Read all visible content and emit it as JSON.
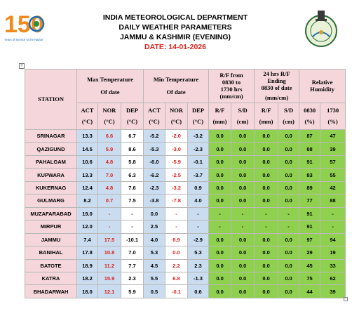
{
  "logo": {
    "number": "150",
    "tagline": "Years of Service to the Nation"
  },
  "header": {
    "line1": "INDIA METEOROLOGICAL DEPARTMENT",
    "line2": "DAILY WEATHER PARAMETERS",
    "line3": "JAMMU & KASHMIR (EVENING)",
    "date": "DATE: 14-01-2026"
  },
  "table": {
    "station_header": "STATION",
    "group_max": [
      "Max Temperature",
      "Of date"
    ],
    "group_min": [
      "Min Temperature",
      "Of date"
    ],
    "group_rf": [
      "R/F from",
      "0830 to",
      "1730 hrs",
      "(mm/cm)"
    ],
    "group_24": [
      "24 hrs R/F",
      "Ending",
      "0830 of date",
      "(mm/cm)"
    ],
    "group_rh": [
      "Relative",
      "Humidity"
    ],
    "sub": {
      "act": "ACT",
      "nor": "NOR",
      "dep": "DEP",
      "unit_c": "(°C)",
      "rf": "R/F",
      "sd": "S/D",
      "mm": "(mm)",
      "cm": "(cm)",
      "t0830": "0830",
      "t1730": "1730",
      "pct": "(%)"
    },
    "rows": [
      [
        "SRINAGAR",
        "13.3",
        "6.6",
        "6.7",
        "-5.2",
        "-2.0",
        "-3.2",
        "0.0",
        "0.0",
        "0.0",
        "0.0",
        "87",
        "47"
      ],
      [
        "QAZIGUND",
        "14.5",
        "5.9",
        "8.6",
        "-5.3",
        "-3.0",
        "-2.3",
        "0.0",
        "0.0",
        "0.0",
        "0.0",
        "88",
        "39"
      ],
      [
        "PAHALGAM",
        "10.6",
        "4.8",
        "5.8",
        "-6.0",
        "-5.9",
        "-0.1",
        "0.0",
        "0.0",
        "0.0",
        "0.0",
        "91",
        "57"
      ],
      [
        "KUPWARA",
        "13.3",
        "7.0",
        "6.3",
        "-6.2",
        "-2.5",
        "-3.7",
        "0.0",
        "0.0",
        "0.0",
        "0.0",
        "83",
        "55"
      ],
      [
        "KUKERNAG",
        "12.4",
        "4.8",
        "7.6",
        "-2.3",
        "-3.2",
        "0.9",
        "0.0",
        "0.0",
        "0.0",
        "0.0",
        "89",
        "42"
      ],
      [
        "GULMARG",
        "8.2",
        "0.7",
        "7.5",
        "-3.8",
        "-7.8",
        "4.0",
        "0.0",
        "0.0",
        "0.0",
        "0.0",
        "77",
        "88"
      ],
      [
        "MUZAFARABAD",
        "19.0",
        "-",
        "-",
        "0.0",
        "-",
        "-",
        "-",
        "-",
        "-",
        "-",
        "91",
        "-"
      ],
      [
        "MIRPUR",
        "12.0",
        "-",
        "-",
        "2.5",
        "-",
        "-",
        "-",
        "-",
        "-",
        "-",
        "91",
        "-"
      ],
      [
        "JAMMU",
        "7.4",
        "17.5",
        "-10.1",
        "4.0",
        "6.9",
        "-2.9",
        "0.0",
        "0.0",
        "0.0",
        "0.0",
        "97",
        "94"
      ],
      [
        "BANIHAL",
        "17.8",
        "10.8",
        "7.0",
        "5.3",
        "0.0",
        "5.3",
        "0.0",
        "0.0",
        "0.0",
        "0.0",
        "29",
        "19"
      ],
      [
        "BATOTE",
        "18.9",
        "11.2",
        "7.7",
        "4.5",
        "2.2",
        "2.3",
        "0.0",
        "0.0",
        "0.0",
        "0.0",
        "45",
        "33"
      ],
      [
        "KATRA",
        "18.2",
        "15.9",
        "2.3",
        "5.5",
        "6.8",
        "-1.3",
        "0.0",
        "0.0",
        "0.0",
        "0.0",
        "75",
        "62"
      ],
      [
        "BHADARWAH",
        "18.0",
        "12.1",
        "5.9",
        "0.5",
        "-0.1",
        "0.6",
        "0.0",
        "0.0",
        "0.0",
        "0.0",
        "44",
        "39"
      ]
    ]
  },
  "colors": {
    "pink": "#f4d6db",
    "blue": "#c9dcf0",
    "green": "#8fd14f",
    "red": "#e0201a"
  }
}
